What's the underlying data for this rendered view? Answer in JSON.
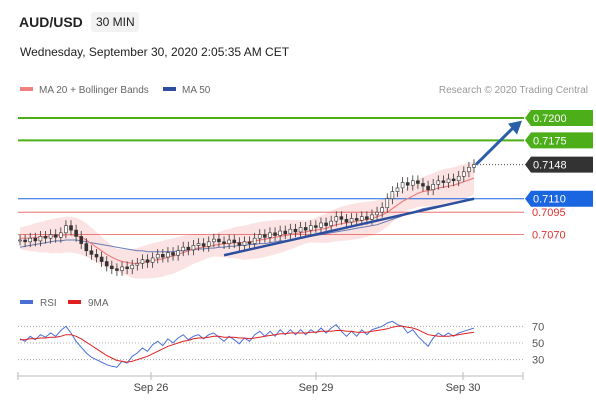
{
  "header": {
    "symbol": "AUD/USD",
    "timeframe": "30 MIN",
    "datetime": "Wednesday, September 30, 2020 2:05:35 AM CET"
  },
  "legend": {
    "items": [
      {
        "label": "MA 20 + Bollinger Bands",
        "color": "#f08080"
      },
      {
        "label": "MA 50",
        "color": "#2b4f9e"
      }
    ],
    "credit": "Research © 2020 Trading Central"
  },
  "rsi_legend": {
    "items": [
      {
        "label": "RSI",
        "color": "#4a6fd6"
      },
      {
        "label": "9MA",
        "color": "#e02020"
      }
    ]
  },
  "chart_data": [
    {
      "type": "line",
      "title": "AUD/USD",
      "description_series": "candlestick price with MA20, Bollinger Bands, MA50",
      "x_ticks": [
        "Sep 26",
        "Sep 29",
        "Sep 30"
      ],
      "ylim": [
        0.7025,
        0.722
      ],
      "levels": [
        {
          "value": 0.72,
          "label": "0.7200",
          "kind": "target",
          "color": "#4caf1a"
        },
        {
          "value": 0.7175,
          "label": "0.7175",
          "kind": "target",
          "color": "#4caf1a"
        },
        {
          "value": 0.7148,
          "label": "0.7148",
          "kind": "last",
          "color": "#333333"
        },
        {
          "value": 0.711,
          "label": "0.7110",
          "kind": "pivot",
          "color": "#1a66e0"
        },
        {
          "value": 0.7095,
          "label": "0.7095",
          "kind": "support",
          "color": "#e03030"
        },
        {
          "value": 0.707,
          "label": "0.7070",
          "kind": "support",
          "color": "#e03030"
        }
      ],
      "series": [
        {
          "name": "Price",
          "values": [
            0.7064,
            0.7062,
            0.7066,
            0.7063,
            0.7068,
            0.7066,
            0.707,
            0.7067,
            0.7072,
            0.708,
            0.7075,
            0.7068,
            0.706,
            0.7052,
            0.7048,
            0.7045,
            0.704,
            0.7035,
            0.7032,
            0.703,
            0.7034,
            0.7032,
            0.7036,
            0.7038,
            0.7042,
            0.7039,
            0.7044,
            0.7048,
            0.7045,
            0.705,
            0.7047,
            0.7052,
            0.7056,
            0.7053,
            0.7058,
            0.706,
            0.7057,
            0.7062,
            0.7065,
            0.7062,
            0.706,
            0.7064,
            0.7061,
            0.7058,
            0.7062,
            0.706,
            0.7066,
            0.707,
            0.7067,
            0.7072,
            0.7069,
            0.7074,
            0.7071,
            0.7076,
            0.7073,
            0.7078,
            0.7075,
            0.708,
            0.7078,
            0.7083,
            0.708,
            0.7085,
            0.709,
            0.7087,
            0.7084,
            0.7088,
            0.7086,
            0.709,
            0.7087,
            0.7092,
            0.7095,
            0.71,
            0.711,
            0.7118,
            0.7122,
            0.7128,
            0.7125,
            0.713,
            0.7127,
            0.7124,
            0.712,
            0.7126,
            0.713,
            0.7128,
            0.7132,
            0.713,
            0.7135,
            0.714,
            0.7145,
            0.7148
          ]
        },
        {
          "name": "MA 20",
          "values": [
            0.7066,
            0.7066,
            0.7066,
            0.7067,
            0.7067,
            0.7068,
            0.7068,
            0.7069,
            0.7069,
            0.707,
            0.707,
            0.7069,
            0.7067,
            0.7064,
            0.706,
            0.7056,
            0.7052,
            0.7048,
            0.7045,
            0.7042,
            0.704,
            0.7039,
            0.7038,
            0.7038,
            0.7039,
            0.704,
            0.7041,
            0.7042,
            0.7043,
            0.7045,
            0.7046,
            0.7048,
            0.705,
            0.7052,
            0.7054,
            0.7055,
            0.7056,
            0.7057,
            0.7058,
            0.7059,
            0.706,
            0.706,
            0.7061,
            0.7061,
            0.7061,
            0.7062,
            0.7063,
            0.7064,
            0.7065,
            0.7066,
            0.7067,
            0.7068,
            0.7069,
            0.707,
            0.7071,
            0.7072,
            0.7073,
            0.7074,
            0.7075,
            0.7076,
            0.7077,
            0.7079,
            0.7081,
            0.7082,
            0.7083,
            0.7084,
            0.7085,
            0.7086,
            0.7087,
            0.7088,
            0.709,
            0.7092,
            0.7095,
            0.7099,
            0.7103,
            0.7107,
            0.711,
            0.7113,
            0.7116,
            0.7118,
            0.7119,
            0.712,
            0.7122,
            0.7123,
            0.7124,
            0.7125,
            0.7127,
            0.7129,
            0.7131,
            0.7133
          ]
        },
        {
          "name": "MA 50",
          "values": [
            0.7056,
            0.7057,
            0.7058,
            0.7059,
            0.706,
            0.7061,
            0.7062,
            0.7063,
            0.7063,
            0.7064,
            0.7064,
            0.7064,
            0.7063,
            0.7062,
            0.7061,
            0.706,
            0.7059,
            0.7058,
            0.7057,
            0.7056,
            0.7055,
            0.7054,
            0.7053,
            0.7052,
            0.7052,
            0.7051,
            0.7051,
            0.7051,
            0.7051,
            0.7051,
            0.7051,
            0.7052,
            0.7052,
            0.7053,
            0.7053,
            0.7054,
            0.7054,
            0.7055,
            0.7055,
            0.7056,
            0.7056,
            0.7057,
            0.7057,
            0.7058,
            0.7058,
            0.7059,
            0.7059,
            0.706,
            0.706,
            0.7061,
            0.7062,
            0.7063,
            0.7063,
            0.7064,
            0.7065,
            0.7066,
            0.7067,
            0.7068,
            0.7069,
            0.707,
            0.7071,
            0.7072,
            0.7073,
            0.7074,
            0.7075,
            0.7076,
            0.7077,
            0.7078,
            0.7079,
            0.708,
            0.7081,
            0.7083,
            0.7085,
            0.7087,
            0.7089,
            0.7091,
            0.7093,
            0.7095,
            0.7097,
            0.7099,
            0.71,
            0.7101,
            0.7102,
            0.7103,
            0.7104,
            0.7105,
            0.7106,
            0.7107,
            0.7108,
            0.7109
          ]
        }
      ]
    },
    {
      "type": "line",
      "title": "RSI",
      "ylim": [
        20,
        80
      ],
      "y_ticks": [
        70,
        50,
        30
      ],
      "series": [
        {
          "name": "RSI",
          "values": [
            55,
            52,
            58,
            54,
            60,
            57,
            62,
            58,
            65,
            70,
            62,
            52,
            45,
            38,
            33,
            30,
            27,
            24,
            22,
            21,
            28,
            26,
            34,
            38,
            44,
            40,
            48,
            52,
            47,
            55,
            50,
            56,
            60,
            54,
            58,
            60,
            55,
            60,
            62,
            57,
            52,
            58,
            54,
            49,
            56,
            52,
            60,
            64,
            58,
            64,
            58,
            66,
            60,
            66,
            60,
            66,
            60,
            66,
            62,
            68,
            62,
            68,
            72,
            64,
            58,
            64,
            58,
            66,
            60,
            66,
            68,
            70,
            74,
            76,
            72,
            70,
            62,
            66,
            58,
            52,
            46,
            56,
            62,
            58,
            62,
            58,
            62,
            64,
            66,
            68
          ]
        },
        {
          "name": "9MA",
          "values": [
            54,
            54,
            55,
            55,
            56,
            56,
            57,
            57,
            58,
            60,
            60,
            58,
            55,
            51,
            47,
            43,
            39,
            35,
            32,
            29,
            28,
            27,
            28,
            30,
            32,
            34,
            37,
            40,
            43,
            46,
            48,
            50,
            52,
            53,
            55,
            56,
            56,
            57,
            58,
            58,
            57,
            57,
            57,
            56,
            56,
            55,
            56,
            57,
            58,
            59,
            60,
            61,
            61,
            62,
            62,
            62,
            62,
            63,
            63,
            64,
            64,
            64,
            65,
            65,
            64,
            64,
            63,
            63,
            63,
            64,
            65,
            66,
            67,
            69,
            70,
            70,
            69,
            68,
            66,
            63,
            60,
            59,
            58,
            58,
            58,
            59,
            60,
            61,
            62,
            63
          ]
        }
      ]
    }
  ]
}
